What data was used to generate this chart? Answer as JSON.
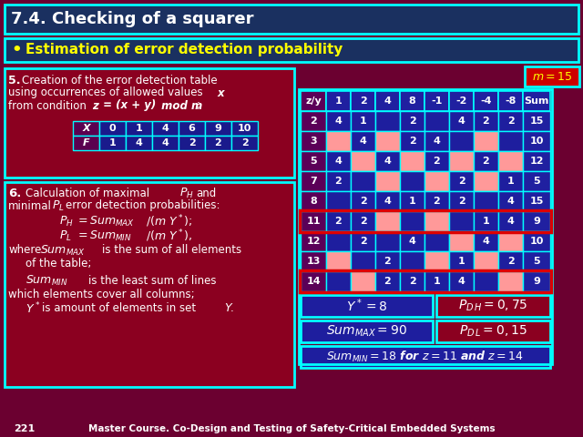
{
  "title": "7.4. Checking of a squarer",
  "bullet": "Estimation of error detection probability",
  "bg_color": "#6B0030",
  "title_bg": "#1a3060",
  "cyan": "#00FFFF",
  "dark_blue": "#1a1a8c",
  "med_blue": "#2a2a9a",
  "purple": "#5B0060",
  "pink": "#FF9999",
  "red_hi": "#CC0000",
  "dark_red": "#8B0020",
  "table_headers": [
    "z/y",
    "1",
    "2",
    "4",
    "8",
    "-1",
    "-2",
    "-4",
    "-8",
    "Sum"
  ],
  "table_rows": [
    {
      "z": "2",
      "vals": [
        4,
        1,
        null,
        2,
        null,
        4,
        2,
        2
      ],
      "sum": 15,
      "highlight": false
    },
    {
      "z": "3",
      "vals": [
        null,
        4,
        null,
        2,
        4,
        null,
        null,
        null
      ],
      "sum": 10,
      "highlight": false
    },
    {
      "z": "5",
      "vals": [
        4,
        null,
        4,
        null,
        2,
        null,
        2,
        null
      ],
      "sum": 12,
      "highlight": false
    },
    {
      "z": "7",
      "vals": [
        2,
        null,
        null,
        null,
        null,
        2,
        null,
        1
      ],
      "sum": 5,
      "highlight": false
    },
    {
      "z": "8",
      "vals": [
        null,
        2,
        4,
        1,
        2,
        2,
        null,
        4
      ],
      "sum": 15,
      "highlight": false
    },
    {
      "z": "11",
      "vals": [
        2,
        2,
        null,
        null,
        null,
        null,
        1,
        4
      ],
      "sum": 9,
      "highlight": true
    },
    {
      "z": "12",
      "vals": [
        null,
        2,
        null,
        4,
        null,
        null,
        4,
        null
      ],
      "sum": 10,
      "highlight": false
    },
    {
      "z": "13",
      "vals": [
        null,
        null,
        2,
        null,
        null,
        1,
        null,
        2
      ],
      "sum": 5,
      "highlight": false
    },
    {
      "z": "14",
      "vals": [
        null,
        null,
        2,
        2,
        1,
        4,
        null,
        null
      ],
      "sum": 9,
      "highlight": true
    }
  ],
  "xf_X": [
    "0",
    "1",
    "4",
    "6",
    "9",
    "10"
  ],
  "xf_F": [
    "1",
    "4",
    "4",
    "2",
    "2",
    "2"
  ],
  "footer": "Master Course. Co-Design and Testing of Safety-Critical Embedded Systems",
  "page_num": "221"
}
